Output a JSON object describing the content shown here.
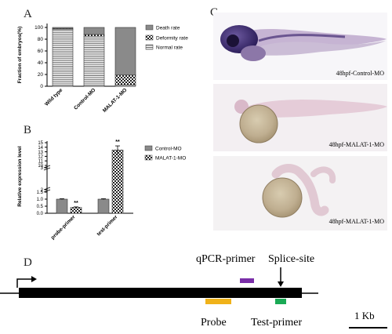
{
  "panels": {
    "A": {
      "letter": "A",
      "chart_data": {
        "type": "bar",
        "stacked": true,
        "categories": [
          "Wild type",
          "Control-MO",
          "MALAT-1-MO"
        ],
        "ylabel": "Fraction of embryos(%)",
        "ylim": [
          0,
          100
        ],
        "yticks": [
          "0",
          "20",
          "40",
          "60",
          "80",
          "100"
        ],
        "legend_position": "right",
        "series": [
          {
            "name": "Normal rate",
            "values": [
              97,
              85,
              2
            ],
            "pattern": "hlines"
          },
          {
            "name": "Deformity rate",
            "values": [
              1,
              3,
              17
            ],
            "pattern": "checker"
          },
          {
            "name": "Death rate",
            "values": [
              2,
              12,
              81
            ],
            "pattern": "gray"
          }
        ]
      }
    },
    "B": {
      "letter": "B",
      "chart_data": {
        "type": "bar",
        "categories": [
          "probe-primer",
          "test-primer"
        ],
        "ylabel": "Relative expression level",
        "axis_break": true,
        "yticks": [
          "0.0",
          "0.5",
          "1.0",
          "1.5",
          "2",
          "3",
          "10",
          "11",
          "12",
          "13",
          "14",
          "15"
        ],
        "legend_position": "top-right",
        "series": [
          {
            "name": "Control-MO",
            "values": [
              1.0,
              1.0
            ],
            "errors": [
              0.03,
              0.03
            ],
            "pattern": "gray"
          },
          {
            "name": "MALAT-1-MO",
            "values": [
              0.42,
              13.4
            ],
            "errors": [
              0.03,
              0.9
            ],
            "pattern": "checker"
          }
        ],
        "annotations": [
          "**",
          "**"
        ]
      }
    },
    "C": {
      "letter": "C",
      "images": [
        {
          "label": "48hpf-Control-MO"
        },
        {
          "label": "48hpf-MALAT-1-MO"
        },
        {
          "label": "48hpf-MALAT-1-MO"
        }
      ]
    },
    "D": {
      "letter": "D",
      "labels": {
        "qpcr": "qPCR-primer",
        "splice": "Splice-site",
        "probe": "Probe",
        "test": "Test-primer",
        "scale": "1 Kb"
      },
      "colors": {
        "qpcr": "#7a2ea8",
        "probe": "#f0b21a",
        "test": "#1aaa55"
      }
    }
  }
}
